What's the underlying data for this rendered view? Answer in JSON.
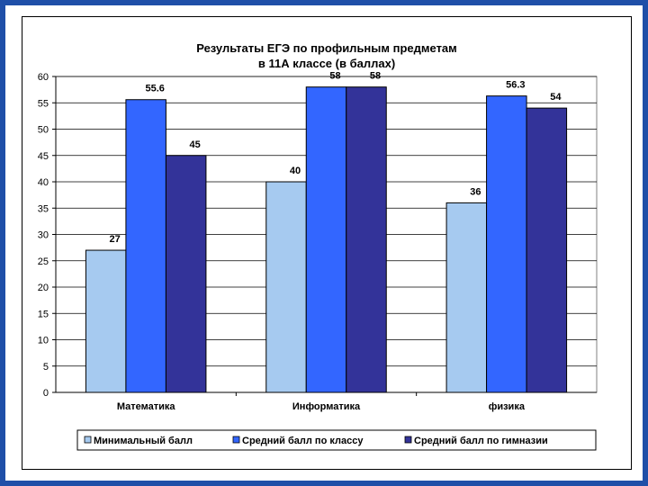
{
  "colors": {
    "background": "#1f4fa8",
    "min_bar": "#a6caf0",
    "class_bar": "#3366ff",
    "gym_bar": "#333399"
  },
  "chart_data": {
    "type": "bar",
    "title": [
      "Результаты ЕГЭ по профильным предметам",
      "в 11А классе (в баллах)"
    ],
    "categories": [
      "Математика",
      "Информатика",
      "физика"
    ],
    "series": [
      {
        "name": "Минимальный балл",
        "values": [
          27,
          40,
          36
        ],
        "labels": [
          "27",
          "40",
          "36"
        ],
        "color": "#a6caf0"
      },
      {
        "name": "Средний балл по классу",
        "values": [
          55.6,
          58,
          56.3
        ],
        "labels": [
          "55.6",
          "58",
          "56.3"
        ],
        "color": "#3366ff"
      },
      {
        "name": "Средний балл по гимназии",
        "values": [
          45,
          58,
          54
        ],
        "labels": [
          "45",
          "58",
          "54"
        ],
        "color": "#333399"
      }
    ],
    "ylim": [
      0,
      60
    ],
    "yticks": [
      "0",
      "5",
      "10",
      "15",
      "20",
      "25",
      "30",
      "35",
      "40",
      "45",
      "50",
      "55",
      "60"
    ],
    "grid": true,
    "legend_position": "bottom"
  }
}
